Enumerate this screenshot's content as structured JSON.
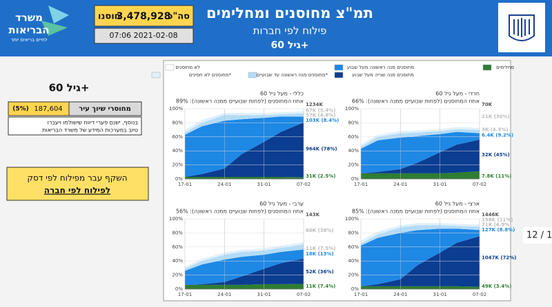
{
  "header": {
    "title": "תמ\"צ מחוסנים ומחלימים",
    "subtitle": "פילוח לפי חברות",
    "age": "גיל 60+",
    "total_prefix": "סה\"כ",
    "total_value": "3,478,928",
    "total_suffix": "חוסנו",
    "timestamp": "07:06 2021-02-08",
    "logo_line1": "משרד",
    "logo_line2": "הבריאות",
    "logo_tagline": "לחיים בריאים יותר"
  },
  "side": {
    "age": "גיל 60+",
    "row_label": "מחוסרי שיוך עיר",
    "row_value": "187,604",
    "row_pct": "(5%)",
    "note_line1": "בנוסף, ישנם פערי דיווח שישולמו ויעברו",
    "note_line2": "טיוב במערכות המידע של משרד הבריאות",
    "notice_line1": "השקף עבר מפילוח לפי דסק",
    "notice_line2": "לפילוח לפי חברה"
  },
  "page_indicator": "12 / 1",
  "legend": [
    {
      "name": "מחלימים",
      "color": "#2e7d32"
    },
    {
      "name": "מחוסנים מנה שנייה מעל שבוע",
      "color": "#0b3d91"
    },
    {
      "name": "מחוסנים מנה ראשונה מעל שבוע",
      "color": "#1e88e5"
    },
    {
      "name": "מחוסנים מנה ראשונה עד שבועיים*",
      "color": "#b3dcf8"
    },
    {
      "name": "מחוסנים לא חסינים*",
      "color": "#e1f0fb"
    },
    {
      "name": "לא מחוסנים",
      "color": "#ffffff"
    }
  ],
  "chart_data": [
    {
      "type": "area",
      "title": "כללי - מעל גיל 60",
      "subtitle": "אחוז המחוסנים (לפחות שבועיים ממנה ראשונה): 89%",
      "x": [
        0,
        3,
        7,
        10,
        14,
        17,
        21
      ],
      "series": [
        {
          "values": [
            3,
            3,
            3,
            3,
            3,
            3,
            2.5
          ]
        },
        {
          "values": [
            0,
            4,
            12,
            32,
            50,
            64,
            78
          ]
        },
        {
          "values": [
            60,
            68,
            68,
            50,
            34,
            22,
            8.4
          ]
        },
        {
          "values": [
            3,
            5,
            8,
            6,
            4,
            3,
            4.6
          ]
        },
        {
          "values": [
            4,
            4,
            3,
            3,
            3,
            3,
            3
          ]
        }
      ],
      "annotations": [
        {
          "text": "1234K",
          "color": "#555555"
        },
        {
          "text": "67K (5.4%)",
          "color": "#bbbbbb"
        },
        {
          "text": "57K (4.6%)",
          "color": "#bbbbbb"
        },
        {
          "text": "103K (8.4%)",
          "color": "#1e88e5"
        },
        {
          "text": "964K (78%)",
          "color": "#0b3d91"
        },
        {
          "text": "31K (2.5%)",
          "color": "#2e7d32"
        }
      ],
      "xlim": [
        0,
        21
      ],
      "xticks": [
        {
          "value": 0,
          "label": "17-01"
        },
        {
          "value": 7,
          "label": "24-01"
        },
        {
          "value": 14,
          "label": "31-01"
        },
        {
          "value": 21,
          "label": "07-02"
        }
      ],
      "ylim": [
        0,
        100
      ],
      "yticks": [
        {
          "value": 0,
          "label": "0%"
        },
        {
          "value": 20,
          "label": "20%"
        },
        {
          "value": 40,
          "label": "40%"
        },
        {
          "value": 60,
          "label": "60%"
        },
        {
          "value": 80,
          "label": "80%"
        },
        {
          "value": 100,
          "label": "100%"
        }
      ],
      "grid": true
    },
    {
      "type": "area",
      "title": "חרדי - מעל גיל 60",
      "subtitle": "אחוז המחוסנים (לפחות שבועיים ממנה ראשונה): 66%",
      "x": [
        0,
        3,
        7,
        10,
        14,
        17,
        21
      ],
      "series": [
        {
          "values": [
            8,
            8,
            8,
            8,
            8,
            9,
            11
          ]
        },
        {
          "values": [
            0,
            2,
            6,
            15,
            30,
            40,
            45
          ]
        },
        {
          "values": [
            35,
            45,
            45,
            38,
            26,
            18,
            9.2
          ]
        },
        {
          "values": [
            3,
            5,
            6,
            5,
            4,
            4,
            4.5
          ]
        },
        {
          "values": [
            3,
            3,
            3,
            3,
            3,
            3,
            3
          ]
        }
      ],
      "annotations": [
        {
          "text": "70K",
          "color": "#555555"
        },
        {
          "text": "21K (30%)",
          "color": "#bbbbbb"
        },
        {
          "text": "3K (4.5%)",
          "color": "#bbbbbb"
        },
        {
          "text": "6.4K (9.2%)",
          "color": "#1e88e5"
        },
        {
          "text": "32K (45%)",
          "color": "#0b3d91"
        },
        {
          "text": "7.8K (11%)",
          "color": "#2e7d32"
        }
      ],
      "xlim": [
        0,
        21
      ],
      "xticks": [
        {
          "value": 0,
          "label": "17-01"
        },
        {
          "value": 7,
          "label": "24-01"
        },
        {
          "value": 14,
          "label": "31-01"
        },
        {
          "value": 21,
          "label": "07-02"
        }
      ],
      "ylim": [
        0,
        100
      ],
      "yticks": [
        {
          "value": 0,
          "label": "0%"
        },
        {
          "value": 20,
          "label": "20%"
        },
        {
          "value": 40,
          "label": "40%"
        },
        {
          "value": 60,
          "label": "60%"
        },
        {
          "value": 80,
          "label": "80%"
        },
        {
          "value": 100,
          "label": "100%"
        }
      ],
      "grid": true
    },
    {
      "type": "area",
      "title": "ערבי - מעל גיל 60",
      "subtitle": "אחוז המחוסנים (לפחות שבועיים ממנה ראשונה): 56%",
      "x": [
        0,
        3,
        7,
        10,
        14,
        17,
        21
      ],
      "series": [
        {
          "values": [
            6,
            6,
            6,
            6,
            7,
            7,
            7.4
          ]
        },
        {
          "values": [
            0,
            1,
            4,
            12,
            22,
            30,
            36
          ]
        },
        {
          "values": [
            20,
            28,
            32,
            28,
            20,
            16,
            13
          ]
        },
        {
          "values": [
            3,
            5,
            7,
            7,
            6,
            6,
            7.5
          ]
        },
        {
          "values": [
            3,
            3,
            3,
            3,
            3,
            3,
            3
          ]
        }
      ],
      "annotations": [
        {
          "text": "143K",
          "color": "#555555"
        },
        {
          "text": "60K (38%)",
          "color": "#bbbbbb"
        },
        {
          "text": "11K (7.5%)",
          "color": "#bbbbbb"
        },
        {
          "text": "18K (13%)",
          "color": "#1e88e5"
        },
        {
          "text": "52K (36%)",
          "color": "#0b3d91"
        },
        {
          "text": "11K (7.4%)",
          "color": "#2e7d32"
        }
      ],
      "xlim": [
        0,
        21
      ],
      "xticks": [
        {
          "value": 0,
          "label": "17-01"
        },
        {
          "value": 7,
          "label": "24-01"
        },
        {
          "value": 14,
          "label": "31-01"
        },
        {
          "value": 21,
          "label": "07-02"
        }
      ],
      "ylim": [
        0,
        100
      ],
      "yticks": [
        {
          "value": 0,
          "label": "0%"
        },
        {
          "value": 20,
          "label": "20%"
        },
        {
          "value": 40,
          "label": "40%"
        },
        {
          "value": 60,
          "label": "60%"
        },
        {
          "value": 80,
          "label": "80%"
        },
        {
          "value": 100,
          "label": "100%"
        }
      ],
      "grid": true
    },
    {
      "type": "area",
      "title": "ארצי - מעל גיל 60",
      "subtitle": "אחוז המחוסנים (לפחות שבועיים ממנה ראשונה): 85%",
      "x": [
        0,
        3,
        7,
        10,
        14,
        17,
        21
      ],
      "series": [
        {
          "values": [
            4,
            4,
            4,
            4,
            4,
            4,
            3.4
          ]
        },
        {
          "values": [
            0,
            3,
            10,
            30,
            48,
            62,
            72
          ]
        },
        {
          "values": [
            58,
            66,
            66,
            50,
            34,
            20,
            8.8
          ]
        },
        {
          "values": [
            3,
            5,
            8,
            7,
            5,
            4,
            4.9
          ]
        },
        {
          "values": [
            4,
            4,
            3,
            3,
            3,
            3,
            3
          ]
        }
      ],
      "annotations": [
        {
          "text": "1446K",
          "color": "#555555"
        },
        {
          "text": "158K (11%)",
          "color": "#bbbbbb"
        },
        {
          "text": "71K (4.9%)",
          "color": "#bbbbbb"
        },
        {
          "text": "127K (8.8%)",
          "color": "#1e88e5"
        },
        {
          "text": "1047K (72%)",
          "color": "#0b3d91"
        },
        {
          "text": "49K (3.4%)",
          "color": "#2e7d32"
        }
      ],
      "xlim": [
        0,
        21
      ],
      "xticks": [
        {
          "value": 0,
          "label": "17-01"
        },
        {
          "value": 7,
          "label": "24-01"
        },
        {
          "value": 14,
          "label": "31-01"
        },
        {
          "value": 21,
          "label": "07-02"
        }
      ],
      "ylim": [
        0,
        100
      ],
      "yticks": [
        {
          "value": 0,
          "label": "0%"
        },
        {
          "value": 20,
          "label": "20%"
        },
        {
          "value": 40,
          "label": "40%"
        },
        {
          "value": 60,
          "label": "60%"
        },
        {
          "value": 80,
          "label": "80%"
        },
        {
          "value": 100,
          "label": "100%"
        }
      ],
      "grid": true
    }
  ]
}
